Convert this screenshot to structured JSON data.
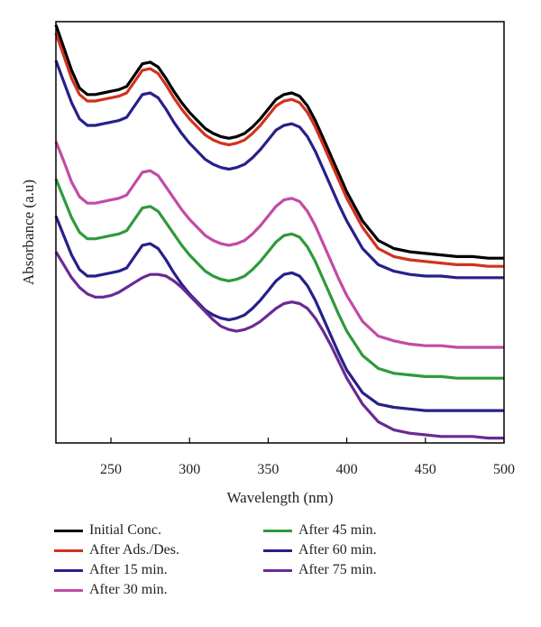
{
  "chart_data": {
    "type": "line",
    "title": "",
    "xlabel": "Wavelength (nm)",
    "ylabel": "Absorbance (a.u)",
    "xlim": [
      215,
      500
    ],
    "ylim": [
      0,
      2.6
    ],
    "xticks": [
      "250",
      "300",
      "350",
      "400",
      "450",
      "500"
    ],
    "yticks_shown": false,
    "grid": false,
    "legend_position": "bottom",
    "x": [
      215,
      220,
      225,
      230,
      235,
      240,
      245,
      250,
      255,
      260,
      265,
      270,
      275,
      280,
      285,
      290,
      295,
      300,
      305,
      310,
      315,
      320,
      325,
      330,
      335,
      340,
      345,
      350,
      355,
      360,
      365,
      370,
      375,
      380,
      385,
      390,
      395,
      400,
      410,
      420,
      430,
      440,
      450,
      460,
      470,
      480,
      490,
      500
    ],
    "series": [
      {
        "name": "Initial Conc.",
        "color": "#000000",
        "values": [
          2.58,
          2.44,
          2.3,
          2.19,
          2.15,
          2.15,
          2.16,
          2.17,
          2.18,
          2.2,
          2.27,
          2.34,
          2.35,
          2.32,
          2.25,
          2.17,
          2.1,
          2.04,
          1.99,
          1.94,
          1.91,
          1.89,
          1.88,
          1.89,
          1.91,
          1.95,
          2.0,
          2.06,
          2.12,
          2.15,
          2.16,
          2.14,
          2.08,
          1.99,
          1.88,
          1.77,
          1.66,
          1.55,
          1.37,
          1.25,
          1.2,
          1.18,
          1.17,
          1.16,
          1.15,
          1.15,
          1.14,
          1.14
        ]
      },
      {
        "name": "After Ads./Des.",
        "color": "#d2321e",
        "values": [
          2.53,
          2.39,
          2.25,
          2.15,
          2.11,
          2.11,
          2.12,
          2.13,
          2.14,
          2.16,
          2.23,
          2.3,
          2.31,
          2.28,
          2.21,
          2.13,
          2.06,
          2.0,
          1.95,
          1.9,
          1.87,
          1.85,
          1.84,
          1.85,
          1.87,
          1.91,
          1.96,
          2.02,
          2.08,
          2.11,
          2.12,
          2.1,
          2.04,
          1.95,
          1.84,
          1.73,
          1.62,
          1.51,
          1.33,
          1.2,
          1.15,
          1.13,
          1.12,
          1.11,
          1.1,
          1.1,
          1.09,
          1.09
        ]
      },
      {
        "name": "After 15 min.",
        "color": "#27208a",
        "values": [
          2.36,
          2.23,
          2.1,
          2.0,
          1.96,
          1.96,
          1.97,
          1.98,
          1.99,
          2.01,
          2.08,
          2.15,
          2.16,
          2.13,
          2.06,
          1.98,
          1.91,
          1.85,
          1.8,
          1.75,
          1.72,
          1.7,
          1.69,
          1.7,
          1.72,
          1.76,
          1.81,
          1.87,
          1.93,
          1.96,
          1.97,
          1.95,
          1.89,
          1.8,
          1.69,
          1.58,
          1.47,
          1.37,
          1.2,
          1.1,
          1.06,
          1.04,
          1.03,
          1.03,
          1.02,
          1.02,
          1.02,
          1.02
        ]
      },
      {
        "name": "After 30 min.",
        "color": "#c34aa5",
        "values": [
          1.86,
          1.74,
          1.61,
          1.52,
          1.48,
          1.48,
          1.49,
          1.5,
          1.51,
          1.53,
          1.6,
          1.67,
          1.68,
          1.65,
          1.58,
          1.51,
          1.44,
          1.38,
          1.33,
          1.28,
          1.25,
          1.23,
          1.22,
          1.23,
          1.25,
          1.29,
          1.34,
          1.4,
          1.46,
          1.5,
          1.51,
          1.49,
          1.43,
          1.34,
          1.23,
          1.12,
          1.01,
          0.91,
          0.75,
          0.66,
          0.63,
          0.61,
          0.6,
          0.6,
          0.59,
          0.59,
          0.59,
          0.59
        ]
      },
      {
        "name": "After 45 min.",
        "color": "#2e9a3c",
        "values": [
          1.63,
          1.51,
          1.39,
          1.3,
          1.26,
          1.26,
          1.27,
          1.28,
          1.29,
          1.31,
          1.38,
          1.45,
          1.46,
          1.43,
          1.36,
          1.29,
          1.22,
          1.16,
          1.11,
          1.06,
          1.03,
          1.01,
          1.0,
          1.01,
          1.03,
          1.07,
          1.12,
          1.18,
          1.24,
          1.28,
          1.29,
          1.27,
          1.21,
          1.12,
          1.01,
          0.9,
          0.79,
          0.69,
          0.54,
          0.46,
          0.43,
          0.42,
          0.41,
          0.41,
          0.4,
          0.4,
          0.4,
          0.4
        ]
      },
      {
        "name": "After 60 min.",
        "color": "#27208a",
        "values": [
          1.4,
          1.28,
          1.16,
          1.07,
          1.03,
          1.03,
          1.04,
          1.05,
          1.06,
          1.08,
          1.15,
          1.22,
          1.23,
          1.2,
          1.13,
          1.05,
          0.98,
          0.92,
          0.87,
          0.82,
          0.79,
          0.77,
          0.76,
          0.77,
          0.79,
          0.83,
          0.88,
          0.94,
          1.0,
          1.04,
          1.05,
          1.03,
          0.97,
          0.88,
          0.77,
          0.66,
          0.55,
          0.45,
          0.31,
          0.24,
          0.22,
          0.21,
          0.2,
          0.2,
          0.2,
          0.2,
          0.2,
          0.2
        ]
      },
      {
        "name": "After 75 min.",
        "color": "#6a2a93",
        "values": [
          1.18,
          1.1,
          1.02,
          0.96,
          0.92,
          0.9,
          0.9,
          0.91,
          0.93,
          0.96,
          0.99,
          1.02,
          1.04,
          1.04,
          1.03,
          1.0,
          0.96,
          0.91,
          0.86,
          0.81,
          0.76,
          0.72,
          0.7,
          0.69,
          0.7,
          0.72,
          0.75,
          0.79,
          0.83,
          0.86,
          0.87,
          0.86,
          0.83,
          0.77,
          0.69,
          0.6,
          0.5,
          0.4,
          0.24,
          0.13,
          0.08,
          0.06,
          0.05,
          0.04,
          0.04,
          0.04,
          0.03,
          0.03
        ]
      }
    ]
  }
}
